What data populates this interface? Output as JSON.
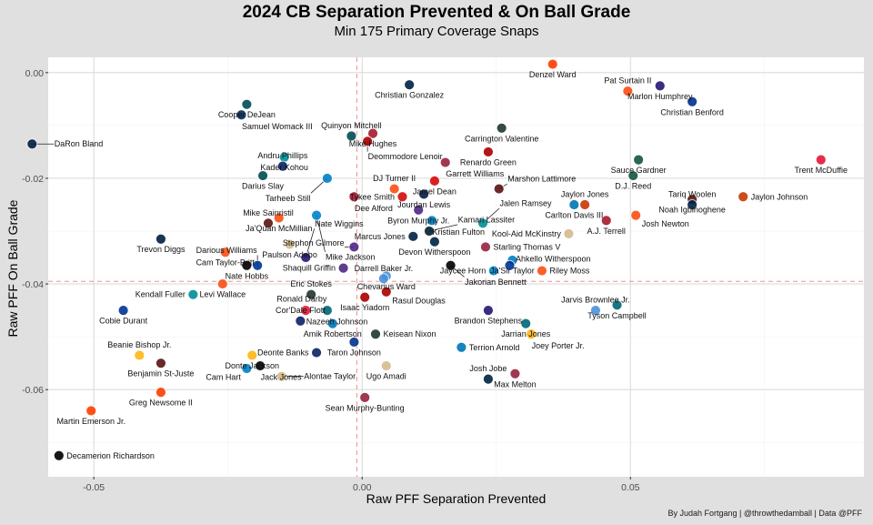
{
  "chart_data": {
    "type": "scatter",
    "title": "2024 CB Separation Prevented & On Ball Grade",
    "subtitle": "Min 175 Primary Coverage Snaps",
    "xlabel": "Raw PFF Separation Prevented",
    "ylabel": "Raw PFF On Ball Grade",
    "caption": "By Judah Fortgang | @throwthedamball | Data @PFF",
    "xlim": [
      -0.0585,
      0.0935
    ],
    "ylim": [
      -0.0765,
      0.0029
    ],
    "x_ticks": [
      -0.05,
      0.0,
      0.05
    ],
    "x_tick_labels": [
      "-0.05",
      "0.00",
      "0.05"
    ],
    "y_ticks": [
      0.0,
      -0.02,
      -0.04,
      -0.06
    ],
    "y_tick_labels": [
      "0.00",
      "-0.02",
      "-0.04",
      "-0.06"
    ],
    "grid": true,
    "reference_lines": {
      "x_mean": -0.001,
      "y_mean": -0.0395
    },
    "marker": "team-logo",
    "points": [
      {
        "name": "Denzel Ward",
        "team": "CLE",
        "color": "#FF3C00",
        "x": 0.0355,
        "y": 0.0016
      },
      {
        "name": "Christian Gonzalez",
        "team": "NE",
        "color": "#002244",
        "x": 0.0088,
        "y": -0.0023
      },
      {
        "name": "Marlon Humphrey",
        "team": "BAL",
        "color": "#241773",
        "x": 0.0555,
        "y": -0.0025
      },
      {
        "name": "Pat Surtain II",
        "team": "DEN",
        "color": "#FB4F14",
        "x": 0.0495,
        "y": -0.0035
      },
      {
        "name": "Christian Benford",
        "team": "BUF",
        "color": "#00338D",
        "x": 0.0615,
        "y": -0.0055
      },
      {
        "name": "Cooper DeJean",
        "team": "PHI",
        "color": "#004C54",
        "x": -0.0215,
        "y": -0.006
      },
      {
        "name": "Samuel Womack III",
        "team": "IND",
        "color": "#002C5F",
        "x": -0.0225,
        "y": -0.008
      },
      {
        "name": "Carrington Valentine",
        "team": "GB",
        "color": "#203731",
        "x": 0.026,
        "y": -0.0105
      },
      {
        "name": "Mike Hughes",
        "team": "ATL",
        "color": "#A71930",
        "x": 0.002,
        "y": -0.0115
      },
      {
        "name": "Quinyon Mitchell",
        "team": "PHI",
        "color": "#004C54",
        "x": -0.002,
        "y": -0.012
      },
      {
        "name": "Deommodore Lenoir",
        "team": "SF",
        "color": "#AA0000",
        "x": 0.001,
        "y": -0.013
      },
      {
        "name": "DaRon Bland",
        "team": "DAL",
        "color": "#041E42",
        "x": -0.0615,
        "y": -0.0135
      },
      {
        "name": "Renardo Green",
        "team": "SF",
        "color": "#AA0000",
        "x": 0.0235,
        "y": -0.015
      },
      {
        "name": "Sauce Gardner",
        "team": "NYJ",
        "color": "#125740",
        "x": 0.0515,
        "y": -0.0165
      },
      {
        "name": "Trent McDuffie",
        "team": "KC",
        "color": "#E31837",
        "x": 0.0855,
        "y": -0.0165
      },
      {
        "name": "Garrett Williams",
        "team": "ARI",
        "color": "#97233F",
        "x": 0.0155,
        "y": -0.017
      },
      {
        "name": "Kader Kohou",
        "team": "MIA",
        "color": "#008E97",
        "x": -0.0145,
        "y": -0.016
      },
      {
        "name": "Andru Phillips",
        "team": "NYG",
        "color": "#0B2265",
        "x": -0.0148,
        "y": -0.0177
      },
      {
        "name": "Darius Slay",
        "team": "PHI",
        "color": "#004C54",
        "x": -0.0185,
        "y": -0.0195
      },
      {
        "name": "Tarheeb Still",
        "team": "LAC",
        "color": "#0080C6",
        "x": -0.0065,
        "y": -0.02
      },
      {
        "name": "Jamel Dean",
        "team": "TB",
        "color": "#D50A0A",
        "x": 0.0135,
        "y": -0.0205
      },
      {
        "name": "Marshon Lattimore",
        "team": "WAS",
        "color": "#5A1414",
        "x": 0.0255,
        "y": -0.022
      },
      {
        "name": "D.J. Reed",
        "team": "NYJ",
        "color": "#125740",
        "x": 0.0505,
        "y": -0.0195
      },
      {
        "name": "DJ Turner II",
        "team": "CIN",
        "color": "#FB4F14",
        "x": 0.006,
        "y": -0.022
      },
      {
        "name": "Jourdan Lewis",
        "team": "DAL",
        "color": "#041E42",
        "x": 0.0115,
        "y": -0.023
      },
      {
        "name": "Dee Alford",
        "team": "ATL",
        "color": "#A71930",
        "x": -0.0015,
        "y": -0.0235
      },
      {
        "name": "Tykee Smith",
        "team": "TB",
        "color": "#D50A0A",
        "x": 0.0075,
        "y": -0.0235
      },
      {
        "name": "Noah Igbinoghene",
        "team": "WAS",
        "color": "#5A1414",
        "x": 0.0615,
        "y": -0.024
      },
      {
        "name": "Jaylon Johnson",
        "team": "CHI",
        "color": "#C83803",
        "x": 0.071,
        "y": -0.0235
      },
      {
        "name": "Carlton Davis III",
        "team": "DET",
        "color": "#0076B6",
        "x": 0.0395,
        "y": -0.025
      },
      {
        "name": "Josh Newton",
        "team": "CIN",
        "color": "#FB4F14",
        "x": 0.051,
        "y": -0.027
      },
      {
        "name": "Tariq Woolen",
        "team": "SEA",
        "color": "#002244",
        "x": 0.0615,
        "y": -0.025
      },
      {
        "name": "Byron Murphy Jr.",
        "team": "MIN",
        "color": "#4F2683",
        "x": 0.0105,
        "y": -0.026
      },
      {
        "name": "Mike Jackson",
        "team": "CAR",
        "color": "#0085CA",
        "x": -0.0085,
        "y": -0.027
      },
      {
        "name": "Jaylon Jones",
        "team": "CHI",
        "color": "#C83803",
        "x": 0.0415,
        "y": -0.025
      },
      {
        "name": "A.J. Terrell",
        "team": "ATL",
        "color": "#A71930",
        "x": 0.0455,
        "y": -0.028
      },
      {
        "name": "Kristian Fulton",
        "team": "LAC",
        "color": "#0080C6",
        "x": 0.013,
        "y": -0.028
      },
      {
        "name": "Jalen Ramsey",
        "team": "MIA",
        "color": "#008E97",
        "x": 0.0225,
        "y": -0.0285
      },
      {
        "name": "Ja'Quan McMillian",
        "team": "DEN",
        "color": "#FB4F14",
        "x": -0.0155,
        "y": -0.0275
      },
      {
        "name": "Mike Sainristil",
        "team": "WAS",
        "color": "#5A1414",
        "x": -0.0175,
        "y": -0.0285
      },
      {
        "name": "Marcus Jones",
        "team": "NE",
        "color": "#002244",
        "x": 0.0095,
        "y": -0.031
      },
      {
        "name": "Kamari Lassiter",
        "team": "HOU",
        "color": "#03202F",
        "x": 0.0125,
        "y": -0.03
      },
      {
        "name": "Kool-Aid McKinstry",
        "team": "NO",
        "color": "#D3BC8D",
        "x": 0.0385,
        "y": -0.0305
      },
      {
        "name": "Trevon Diggs",
        "team": "DAL",
        "color": "#041E42",
        "x": -0.0375,
        "y": -0.0315
      },
      {
        "name": "Cam Taylor-Britt",
        "team": "CIN",
        "color": "#FB4F14",
        "x": -0.0255,
        "y": -0.034
      },
      {
        "name": "Paulson Adebo",
        "team": "NO",
        "color": "#D3BC8D",
        "x": -0.0135,
        "y": -0.0325
      },
      {
        "name": "Stephon Gilmore",
        "team": "MIN",
        "color": "#4F2683",
        "x": -0.0015,
        "y": -0.033
      },
      {
        "name": "Devon Witherspoon",
        "team": "SEA",
        "color": "#002244",
        "x": 0.0135,
        "y": -0.032
      },
      {
        "name": "Starling Thomas V",
        "team": "ARI",
        "color": "#97233F",
        "x": 0.023,
        "y": -0.033
      },
      {
        "name": "Ja'Sir Taylor",
        "team": "LAC",
        "color": "#0080C6",
        "x": 0.028,
        "y": -0.0355
      },
      {
        "name": "Nate Hobbs",
        "team": "LV",
        "color": "#000000",
        "x": -0.0215,
        "y": -0.0365
      },
      {
        "name": "Nate Wiggins",
        "team": "BAL",
        "color": "#241773",
        "x": -0.0105,
        "y": -0.035
      },
      {
        "name": "Shaquill Griffin",
        "team": "MIN",
        "color": "#4F2683",
        "x": -0.0035,
        "y": -0.037
      },
      {
        "name": "Darious Williams",
        "team": "LAR",
        "color": "#003594",
        "x": -0.0195,
        "y": -0.0365
      },
      {
        "name": "Jakorian Bennett",
        "team": "LV",
        "color": "#000000",
        "x": 0.0165,
        "y": -0.0365
      },
      {
        "name": "Ahkello Witherspoon",
        "team": "LAR",
        "color": "#003594",
        "x": 0.0275,
        "y": -0.0365
      },
      {
        "name": "Cobie Durant",
        "team": "LAR",
        "color": "#003594",
        "x": -0.0445,
        "y": -0.045
      },
      {
        "name": "Chevarius Ward",
        "team": "TEN",
        "color": "#4B92DB",
        "x": 0.0045,
        "y": -0.0385
      },
      {
        "name": "Jaycee Horn",
        "team": "CAR",
        "color": "#0085CA",
        "x": 0.0245,
        "y": -0.0375
      },
      {
        "name": "Riley Moss",
        "team": "DEN",
        "color": "#FB4F14",
        "x": 0.0335,
        "y": -0.0375
      },
      {
        "name": "Levi Wallace",
        "team": "DEN",
        "color": "#FB4F14",
        "x": -0.026,
        "y": -0.04
      },
      {
        "name": "Darrell Baker Jr.",
        "team": "TEN",
        "color": "#4B92DB",
        "x": 0.004,
        "y": -0.039
      },
      {
        "name": "Rasul Douglas",
        "team": "SF",
        "color": "#AA0000",
        "x": 0.0045,
        "y": -0.0415
      },
      {
        "name": "Kendall Fuller",
        "team": "MIA",
        "color": "#008E97",
        "x": -0.0315,
        "y": -0.042
      },
      {
        "name": "Eric Stokes",
        "team": "GB",
        "color": "#203731",
        "x": -0.0095,
        "y": -0.042
      },
      {
        "name": "Isaac Yiadom",
        "team": "SF",
        "color": "#AA0000",
        "x": 0.0005,
        "y": -0.0425
      },
      {
        "name": "Brandon Stephens",
        "team": "BAL",
        "color": "#241773",
        "x": 0.0235,
        "y": -0.045
      },
      {
        "name": "Tyson Campbell",
        "team": "JAX",
        "color": "#006778",
        "x": 0.0475,
        "y": -0.044
      },
      {
        "name": "Nazeeh Johnson",
        "team": "KC",
        "color": "#E31837",
        "x": -0.0105,
        "y": -0.045
      },
      {
        "name": "Ronald Darby",
        "team": "JAX",
        "color": "#006778",
        "x": -0.0065,
        "y": -0.045
      },
      {
        "name": "Jarvis Brownlee Jr.",
        "team": "TEN",
        "color": "#4B92DB",
        "x": 0.0435,
        "y": -0.045
      },
      {
        "name": "Cor'Dale Flott",
        "team": "NYG",
        "color": "#0B2265",
        "x": -0.0115,
        "y": -0.047
      },
      {
        "name": "Amik Robertson",
        "team": "DET",
        "color": "#0076B6",
        "x": -0.0055,
        "y": -0.0475
      },
      {
        "name": "Jarrian Jones",
        "team": "JAX",
        "color": "#006778",
        "x": 0.0305,
        "y": -0.0475
      },
      {
        "name": "Joey Porter Jr.",
        "team": "PIT",
        "color": "#FFB612",
        "x": 0.0315,
        "y": -0.0495
      },
      {
        "name": "Keisean Nixon",
        "team": "GB",
        "color": "#203731",
        "x": 0.0025,
        "y": -0.0495
      },
      {
        "name": "Taron Johnson",
        "team": "BUF",
        "color": "#00338D",
        "x": -0.0015,
        "y": -0.051
      },
      {
        "name": "Beanie Bishop Jr.",
        "team": "PIT",
        "color": "#FFB612",
        "x": -0.0415,
        "y": -0.0535
      },
      {
        "name": "Donte Jackson",
        "team": "PIT",
        "color": "#FFB612",
        "x": -0.0205,
        "y": -0.0535
      },
      {
        "name": "Deonte Banks",
        "team": "NYG",
        "color": "#0B2265",
        "x": -0.0085,
        "y": -0.053
      },
      {
        "name": "Terrion Arnold",
        "team": "DET",
        "color": "#0076B6",
        "x": 0.0185,
        "y": -0.052
      },
      {
        "name": "Benjamin St-Juste",
        "team": "WAS",
        "color": "#5A1414",
        "x": -0.0375,
        "y": -0.055
      },
      {
        "name": "Jack Jones",
        "team": "LV",
        "color": "#000000",
        "x": -0.019,
        "y": -0.0555
      },
      {
        "name": "Ugo Amadi",
        "team": "NO",
        "color": "#D3BC8D",
        "x": 0.0045,
        "y": -0.0555
      },
      {
        "name": "Cam Hart",
        "team": "LAC",
        "color": "#0080C6",
        "x": -0.0215,
        "y": -0.056
      },
      {
        "name": "Alontae Taylor",
        "team": "NO",
        "color": "#D3BC8D",
        "x": -0.015,
        "y": -0.0575
      },
      {
        "name": "Max Melton",
        "team": "ARI",
        "color": "#97233F",
        "x": 0.0285,
        "y": -0.057
      },
      {
        "name": "Josh Jobe",
        "team": "SEA",
        "color": "#002244",
        "x": 0.0235,
        "y": -0.058
      },
      {
        "name": "Greg Newsome II",
        "team": "CLE",
        "color": "#FF3C00",
        "x": -0.0375,
        "y": -0.0605
      },
      {
        "name": "Sean Murphy-Bunting",
        "team": "ARI",
        "color": "#97233F",
        "x": 0.0005,
        "y": -0.0615
      },
      {
        "name": "Martin Emerson Jr.",
        "team": "CLE",
        "color": "#FF3C00",
        "x": -0.0505,
        "y": -0.064
      },
      {
        "name": "Decamerion Richardson",
        "team": "LV",
        "color": "#000000",
        "x": -0.0565,
        "y": -0.0725
      }
    ]
  }
}
